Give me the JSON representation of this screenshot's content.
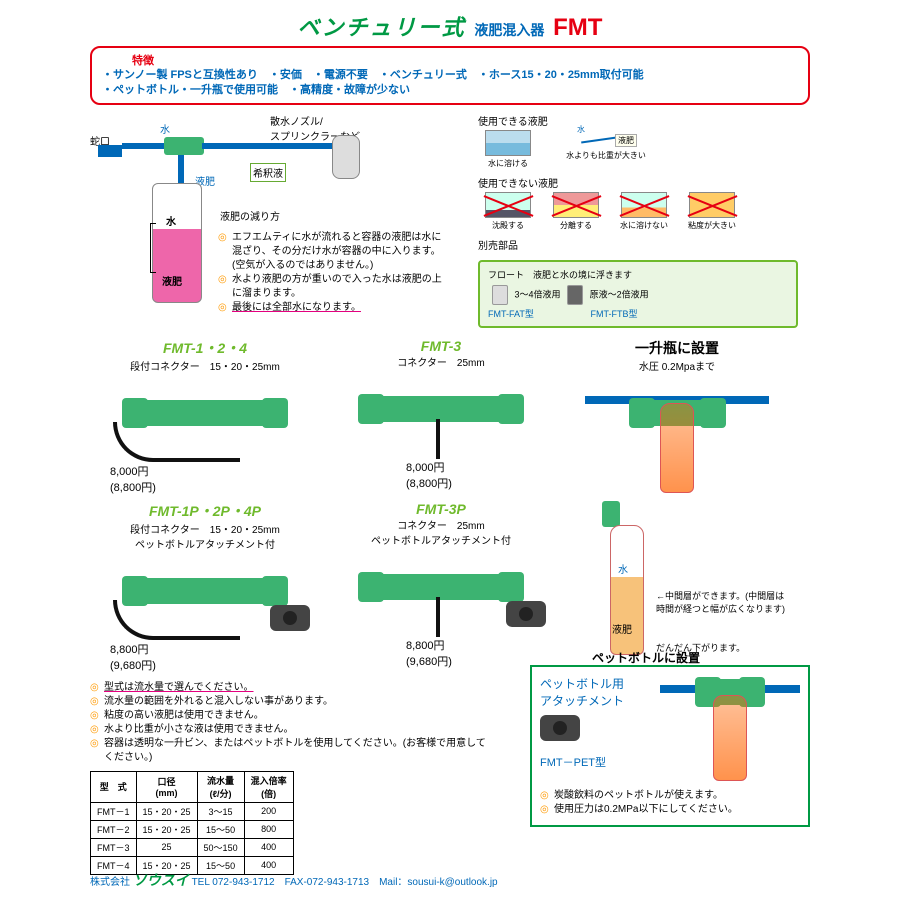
{
  "header": {
    "title_main": "ベンチュリー式",
    "title_sub": "液肥混入器",
    "title_model": "FMT"
  },
  "features": {
    "heading": "特徴",
    "line1": "・サンノー製 FPSと互換性あり　・安価　・電源不要　・ベンチュリー式　・ホース15・20・25mm取付可能",
    "line2": "・ペットボトル・一升瓶で使用可能　・高精度・故障が少ない"
  },
  "diagram": {
    "faucet": "蛇口",
    "water": "水",
    "nozzle": "散水ノズル/\nスプリンクラーなど",
    "dilute": "希釈液",
    "liquid": "液肥",
    "water2": "水",
    "liquid2": "液肥",
    "decrease": "液肥の減り方",
    "note1": "エフエムティに水が流れると容器の液肥は水に混ざり、その分だけ水が容器の中に入ります。(空気が入るのではありません。)",
    "note2": "水より液肥の方が重いので入った水は液肥の上に溜まります。",
    "note3": "最後には全部水になります。"
  },
  "usable": {
    "heading": "使用できる液肥",
    "opt1": "水に溶ける",
    "opt2": "水よりも比重が大きい",
    "label_water": "水",
    "label_liq": "液肥"
  },
  "unusable": {
    "heading": "使用できない液肥",
    "opt1": "沈殿する",
    "opt2": "分離する",
    "opt3": "水に溶けない",
    "opt4": "粘度が大きい"
  },
  "optional": {
    "heading": "別売部品",
    "float_label": "フロート　液肥と水の境に浮きます",
    "a_range": "3～4倍液用",
    "b_range": "原液～2倍液用",
    "a_model": "FMT-FAT型",
    "b_model": "FMT-FTB型"
  },
  "products": {
    "p1": {
      "name": "FMT-1・2・4",
      "sub": "段付コネクター　15・20・25mm",
      "price": "8,000円",
      "price_tax": "(8,800円)"
    },
    "p2": {
      "name": "FMT-3",
      "sub": "コネクター　25mm",
      "price": "8,000円",
      "price_tax": "(8,800円)"
    },
    "p3": {
      "name": "一升瓶に設置",
      "sub": "水圧 0.2Mpaまで"
    },
    "p4": {
      "name": "FMT-1P・2P・4P",
      "sub1": "段付コネクター　15・20・25mm",
      "sub2": "ペットボトルアタッチメント付",
      "price": "8,800円",
      "price_tax": "(9,680円)"
    },
    "p5": {
      "name": "FMT-3P",
      "sub1": "コネクター　25mm",
      "sub2": "ペットボトルアタッチメント付",
      "price": "8,800円",
      "price_tax": "(9,680円)"
    },
    "p6": {
      "water": "水",
      "liquid": "液肥",
      "note1": "中間層ができます。(中間層は時間が経つと幅が広くなります)",
      "note2": "だんだん下がります。"
    }
  },
  "notes": {
    "n0": "型式は流水量で選んでください。",
    "n1": "流水量の範囲を外れると混入しない事があります。",
    "n2": "粘度の高い液肥は使用できません。",
    "n3": "水より比重が小さな液は使用できません。",
    "n4": "容器は透明な一升ビン、またはペットボトルを使用してください。(お客様で用意してください。)"
  },
  "spec_table": {
    "headers": [
      "型　式",
      "口径\n(mm)",
      "流水量\n(ℓ/分)",
      "混入倍率\n(倍)"
    ],
    "rows": [
      [
        "FMT－1",
        "15・20・25",
        "3～15",
        "200"
      ],
      [
        "FMT－2",
        "15・20・25",
        "15～50",
        "800"
      ],
      [
        "FMT－3",
        "25",
        "50～150",
        "400"
      ],
      [
        "FMT－4",
        "15・20・25",
        "15～50",
        "400"
      ]
    ]
  },
  "pet_box": {
    "title": "ペットボトルに設置",
    "sub": "ペットボトル用\nアタッチメント",
    "model": "FMT－PET型",
    "note1": "炭酸飲料のペットボトルが使えます。",
    "note2": "使用圧力は0.2MPa以下にしてください。"
  },
  "footer": {
    "company_prefix": "株式会社",
    "company": "ソウスイ",
    "contact": "TEL 072-943-1712　FAX-072-943-1713　Mail：sousui-k@outlook.jp"
  },
  "colors": {
    "green": "#009944",
    "blue": "#0068b7",
    "red": "#e60012",
    "lightgreen": "#6fba2c",
    "orange": "#f39800",
    "magenta": "#e4007f"
  }
}
